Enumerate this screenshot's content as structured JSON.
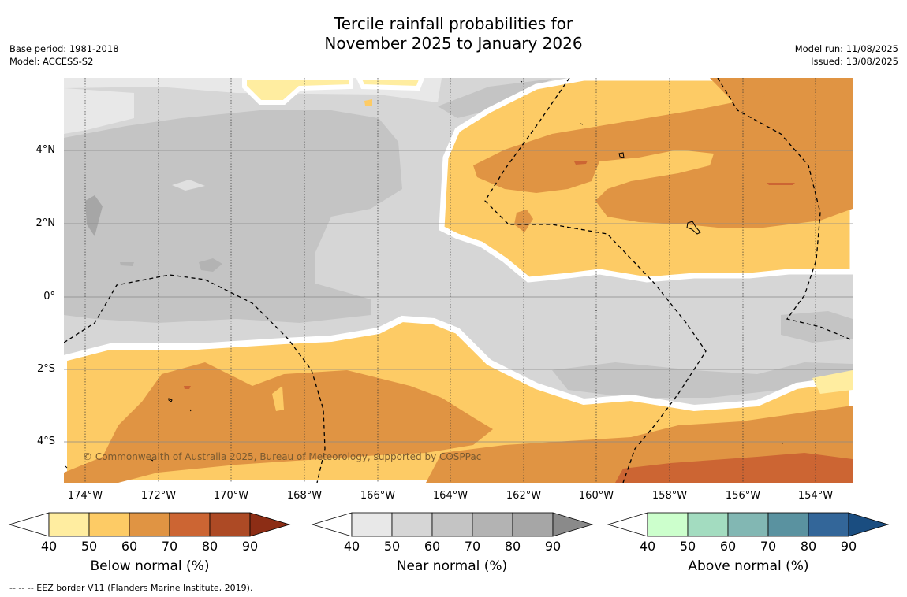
{
  "title": {
    "line1": "Tercile rainfall probabilities for",
    "line2": "November 2025 to January 2026"
  },
  "meta_left": {
    "base_period": "Base period: 1981-2018",
    "model": "Model: ACCESS-S2"
  },
  "meta_right": {
    "model_run": "Model run: 11/08/2025",
    "issued": "Issued: 13/08/2025"
  },
  "map": {
    "lat_labels": [
      "4°N",
      "2°N",
      "0°",
      "2°S",
      "4°S"
    ],
    "lon_labels": [
      "174°W",
      "172°W",
      "170°W",
      "168°W",
      "166°W",
      "164°W",
      "162°W",
      "160°W",
      "158°W",
      "156°W",
      "154°W"
    ],
    "copyright": "© Commonwealth of Australia 2025, Bureau of Meteorology, supported by COSPPac"
  },
  "colorbars": [
    {
      "label": "Below normal (%)",
      "colors": [
        "#ffeda0",
        "#fdcb65",
        "#e09443",
        "#cc6533",
        "#ad4a25",
        "#8c2d15"
      ],
      "ticks": [
        "40",
        "50",
        "60",
        "70",
        "80",
        "90"
      ]
    },
    {
      "label": "Near normal (%)",
      "colors": [
        "#e8e8e8",
        "#d6d6d6",
        "#c4c4c4",
        "#b3b3b3",
        "#a6a6a6",
        "#8a8a8a"
      ],
      "ticks": [
        "40",
        "50",
        "60",
        "70",
        "80",
        "90"
      ]
    },
    {
      "label": "Above normal (%)",
      "colors": [
        "#ccffcc",
        "#a3dcc0",
        "#82b7b3",
        "#5a92a0",
        "#336699",
        "#1a4d80"
      ],
      "ticks": [
        "40",
        "50",
        "60",
        "70",
        "80",
        "90"
      ]
    }
  ],
  "footnote": "--  --  -- EEZ border V11 (Flanders Marine Institute, 2019)."
}
